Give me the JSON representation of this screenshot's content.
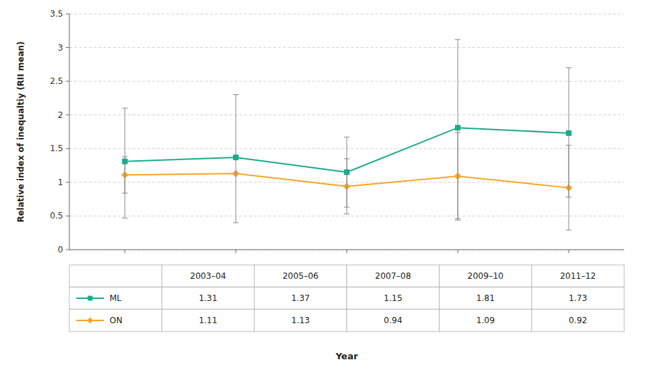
{
  "chart_data": {
    "type": "line",
    "categories": [
      "2003–04",
      "2005–06",
      "2007–08",
      "2009–10",
      "2011–12"
    ],
    "series": [
      {
        "name": "ML",
        "color": "#1aaa8c",
        "marker": "square",
        "values": [
          1.31,
          1.37,
          1.15,
          1.81,
          1.73
        ],
        "ci_lo": [
          0.47,
          0.4,
          0.63,
          0.46,
          0.78
        ],
        "ci_hi": [
          2.1,
          2.3,
          1.67,
          3.12,
          2.7
        ]
      },
      {
        "name": "ON",
        "color": "#f5a623",
        "marker": "diamond",
        "values": [
          1.11,
          1.13,
          0.94,
          1.09,
          0.92
        ],
        "ci_lo": [
          0.84,
          1.12,
          0.53,
          0.44,
          0.29
        ],
        "ci_hi": [
          1.38,
          1.14,
          1.35,
          1.74,
          1.55
        ]
      }
    ],
    "x_label": "Year",
    "y_label": "Relative index of inequaltiy (RII mean)",
    "ylim": [
      0.0,
      3.5
    ],
    "yticks": [
      0.0,
      0.5,
      1.0,
      1.5,
      2.0,
      2.5,
      3.0,
      3.5
    ],
    "grid": true,
    "tick_labels": "y",
    "data_labels": true
  }
}
